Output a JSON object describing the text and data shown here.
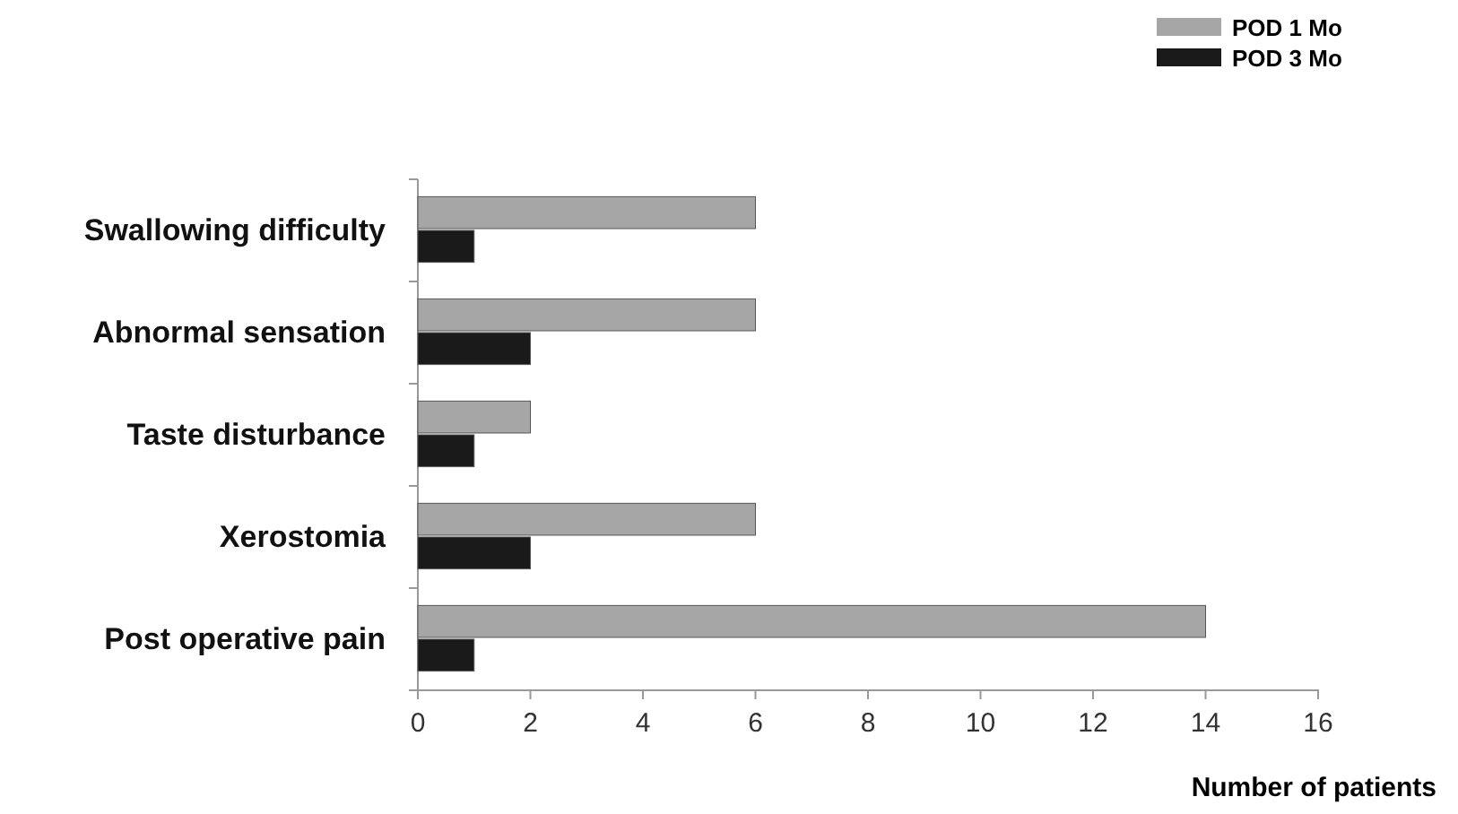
{
  "chart_data": {
    "type": "bar",
    "orientation": "horizontal",
    "xlabel": "Number of patients",
    "categories": [
      "Swallowing difficulty",
      "Abnormal sensation",
      "Taste disturbance",
      "Xerostomia",
      "Post operative pain"
    ],
    "series": [
      {
        "name": "POD 1 Mo",
        "color": "#a6a6a6",
        "values": [
          6,
          6,
          2,
          6,
          14
        ]
      },
      {
        "name": "POD 3 Mo",
        "color": "#1a1a1a",
        "values": [
          1,
          2,
          1,
          2,
          1
        ]
      }
    ],
    "xlim": [
      0,
      16
    ],
    "xticks": [
      0,
      2,
      4,
      6,
      8,
      10,
      12,
      14,
      16
    ],
    "grid": false,
    "legend": "top right"
  }
}
